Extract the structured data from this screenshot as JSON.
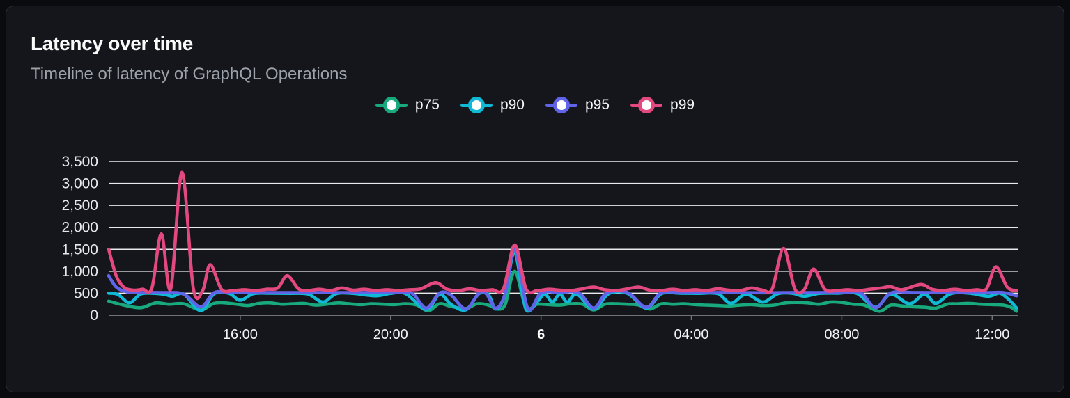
{
  "header": {
    "title": "Latency over time",
    "subtitle": "Timeline of latency of GraphQL Operations"
  },
  "colors": {
    "page_bg": "#0a0b0e",
    "card_bg": "#14161b",
    "card_border": "#2a2d34",
    "grid": "#e8eaed",
    "axis": "#70737a",
    "x_label": "#f2f3f5",
    "x_label_bold": "#ffffff",
    "y_label": "#e7e8ea",
    "title": "#fafafa",
    "subtitle": "#9da2aa",
    "legend_label": "#f4f4f5",
    "marker_fill": "#ffffff"
  },
  "chart_data": {
    "type": "line",
    "title": "Latency over time",
    "subtitle": "Timeline of latency of GraphQL Operations",
    "xlabel": "",
    "ylabel": "",
    "grid": "horizontal",
    "legend_position": "top-center",
    "ylim": [
      0,
      3500
    ],
    "y_ticks": [
      0,
      500,
      1000,
      1500,
      2000,
      2500,
      3000,
      3500
    ],
    "xlim_hours": [
      12.5,
      36.68
    ],
    "x_ticks": [
      {
        "hour": 16,
        "label": "16:00",
        "bold": false
      },
      {
        "hour": 20,
        "label": "20:00",
        "bold": false
      },
      {
        "hour": 24,
        "label": "6",
        "bold": true
      },
      {
        "hour": 28,
        "label": "04:00",
        "bold": false
      },
      {
        "hour": 32,
        "label": "08:00",
        "bold": false
      },
      {
        "hour": 36,
        "label": "12:00",
        "bold": false
      }
    ],
    "series": [
      {
        "name": "p75",
        "color": "#18a97d",
        "points": [
          [
            12.5,
            320
          ],
          [
            12.9,
            230
          ],
          [
            13.35,
            170
          ],
          [
            13.75,
            280
          ],
          [
            14.1,
            250
          ],
          [
            14.5,
            260
          ],
          [
            14.95,
            120
          ],
          [
            15.3,
            270
          ],
          [
            15.6,
            280
          ],
          [
            15.9,
            250
          ],
          [
            16.2,
            220
          ],
          [
            16.5,
            270
          ],
          [
            16.8,
            280
          ],
          [
            17.1,
            250
          ],
          [
            17.4,
            260
          ],
          [
            17.7,
            270
          ],
          [
            18.0,
            230
          ],
          [
            18.3,
            250
          ],
          [
            18.6,
            280
          ],
          [
            18.9,
            260
          ],
          [
            19.2,
            240
          ],
          [
            19.5,
            260
          ],
          [
            19.8,
            250
          ],
          [
            20.1,
            240
          ],
          [
            20.4,
            260
          ],
          [
            20.7,
            230
          ],
          [
            21.0,
            100
          ],
          [
            21.3,
            260
          ],
          [
            21.6,
            200
          ],
          [
            22.0,
            150
          ],
          [
            22.3,
            260
          ],
          [
            22.6,
            230
          ],
          [
            22.85,
            140
          ],
          [
            23.05,
            250
          ],
          [
            23.3,
            1000
          ],
          [
            23.6,
            180
          ],
          [
            23.9,
            250
          ],
          [
            24.2,
            240
          ],
          [
            24.5,
            230
          ],
          [
            24.8,
            260
          ],
          [
            25.1,
            250
          ],
          [
            25.4,
            120
          ],
          [
            25.7,
            250
          ],
          [
            26.0,
            260
          ],
          [
            26.3,
            250
          ],
          [
            26.6,
            230
          ],
          [
            26.9,
            140
          ],
          [
            27.2,
            260
          ],
          [
            27.5,
            250
          ],
          [
            27.8,
            260
          ],
          [
            28.1,
            240
          ],
          [
            28.4,
            230
          ],
          [
            28.7,
            220
          ],
          [
            29.0,
            210
          ],
          [
            29.3,
            230
          ],
          [
            29.6,
            240
          ],
          [
            29.9,
            220
          ],
          [
            30.2,
            230
          ],
          [
            30.5,
            280
          ],
          [
            30.8,
            290
          ],
          [
            31.1,
            280
          ],
          [
            31.4,
            250
          ],
          [
            31.7,
            300
          ],
          [
            32.0,
            290
          ],
          [
            32.3,
            250
          ],
          [
            32.6,
            230
          ],
          [
            33.0,
            90
          ],
          [
            33.3,
            230
          ],
          [
            33.6,
            210
          ],
          [
            33.9,
            190
          ],
          [
            34.2,
            180
          ],
          [
            34.5,
            160
          ],
          [
            34.8,
            250
          ],
          [
            35.1,
            260
          ],
          [
            35.4,
            270
          ],
          [
            35.7,
            250
          ],
          [
            36.0,
            240
          ],
          [
            36.3,
            230
          ],
          [
            36.5,
            180
          ],
          [
            36.65,
            90
          ]
        ]
      },
      {
        "name": "p90",
        "color": "#10b9d5",
        "points": [
          [
            12.5,
            500
          ],
          [
            12.75,
            470
          ],
          [
            13.05,
            280
          ],
          [
            13.35,
            480
          ],
          [
            13.7,
            495
          ],
          [
            14.0,
            470
          ],
          [
            14.2,
            430
          ],
          [
            14.5,
            480
          ],
          [
            14.95,
            100
          ],
          [
            15.3,
            485
          ],
          [
            15.7,
            495
          ],
          [
            16.0,
            340
          ],
          [
            16.35,
            490
          ],
          [
            16.8,
            500
          ],
          [
            17.3,
            495
          ],
          [
            17.8,
            480
          ],
          [
            18.2,
            300
          ],
          [
            18.55,
            490
          ],
          [
            19.0,
            495
          ],
          [
            19.6,
            440
          ],
          [
            20.0,
            495
          ],
          [
            20.4,
            490
          ],
          [
            20.95,
            130
          ],
          [
            21.3,
            480
          ],
          [
            21.6,
            250
          ],
          [
            22.0,
            120
          ],
          [
            22.35,
            490
          ],
          [
            22.6,
            470
          ],
          [
            22.8,
            140
          ],
          [
            23.05,
            480
          ],
          [
            23.3,
            1430
          ],
          [
            23.6,
            130
          ],
          [
            23.9,
            310
          ],
          [
            24.1,
            480
          ],
          [
            24.3,
            300
          ],
          [
            24.5,
            480
          ],
          [
            24.7,
            300
          ],
          [
            24.95,
            480
          ],
          [
            25.4,
            140
          ],
          [
            25.8,
            490
          ],
          [
            26.3,
            495
          ],
          [
            26.8,
            160
          ],
          [
            27.2,
            490
          ],
          [
            27.7,
            500
          ],
          [
            28.2,
            495
          ],
          [
            28.7,
            490
          ],
          [
            29.05,
            270
          ],
          [
            29.45,
            480
          ],
          [
            29.9,
            300
          ],
          [
            30.3,
            490
          ],
          [
            30.7,
            495
          ],
          [
            31.0,
            430
          ],
          [
            31.4,
            495
          ],
          [
            31.9,
            500
          ],
          [
            32.4,
            495
          ],
          [
            32.9,
            180
          ],
          [
            33.3,
            480
          ],
          [
            33.8,
            260
          ],
          [
            34.2,
            480
          ],
          [
            34.5,
            270
          ],
          [
            34.9,
            490
          ],
          [
            35.4,
            500
          ],
          [
            35.9,
            430
          ],
          [
            36.2,
            500
          ],
          [
            36.45,
            350
          ],
          [
            36.65,
            160
          ]
        ]
      },
      {
        "name": "p95",
        "color": "#6064e8",
        "points": [
          [
            12.5,
            900
          ],
          [
            12.7,
            640
          ],
          [
            12.95,
            540
          ],
          [
            13.2,
            515
          ],
          [
            14.0,
            515
          ],
          [
            14.5,
            480
          ],
          [
            14.95,
            190
          ],
          [
            15.3,
            510
          ],
          [
            15.7,
            515
          ],
          [
            16.5,
            515
          ],
          [
            17.5,
            515
          ],
          [
            18.5,
            515
          ],
          [
            19.5,
            515
          ],
          [
            20.3,
            515
          ],
          [
            20.6,
            480
          ],
          [
            20.95,
            160
          ],
          [
            21.3,
            505
          ],
          [
            21.6,
            460
          ],
          [
            22.0,
            140
          ],
          [
            22.35,
            505
          ],
          [
            22.55,
            480
          ],
          [
            22.8,
            160
          ],
          [
            23.05,
            500
          ],
          [
            23.3,
            1500
          ],
          [
            23.65,
            150
          ],
          [
            24.0,
            505
          ],
          [
            24.5,
            515
          ],
          [
            25.0,
            510
          ],
          [
            25.4,
            160
          ],
          [
            25.75,
            505
          ],
          [
            26.3,
            515
          ],
          [
            26.8,
            180
          ],
          [
            27.2,
            510
          ],
          [
            27.8,
            515
          ],
          [
            28.5,
            515
          ],
          [
            29.2,
            515
          ],
          [
            29.9,
            510
          ],
          [
            30.6,
            515
          ],
          [
            31.3,
            515
          ],
          [
            32.0,
            515
          ],
          [
            32.5,
            510
          ],
          [
            32.9,
            170
          ],
          [
            33.3,
            505
          ],
          [
            33.9,
            515
          ],
          [
            34.5,
            515
          ],
          [
            35.2,
            515
          ],
          [
            35.9,
            515
          ],
          [
            36.3,
            515
          ],
          [
            36.65,
            440
          ]
        ]
      },
      {
        "name": "p99",
        "color": "#e3487f",
        "points": [
          [
            12.5,
            1500
          ],
          [
            12.7,
            900
          ],
          [
            12.9,
            640
          ],
          [
            13.15,
            570
          ],
          [
            13.4,
            590
          ],
          [
            13.65,
            620
          ],
          [
            13.9,
            1850
          ],
          [
            14.15,
            600
          ],
          [
            14.45,
            3250
          ],
          [
            14.75,
            620
          ],
          [
            15.0,
            560
          ],
          [
            15.2,
            1150
          ],
          [
            15.5,
            590
          ],
          [
            15.8,
            560
          ],
          [
            16.1,
            580
          ],
          [
            16.4,
            560
          ],
          [
            16.7,
            590
          ],
          [
            17.0,
            620
          ],
          [
            17.25,
            900
          ],
          [
            17.55,
            600
          ],
          [
            17.8,
            560
          ],
          [
            18.1,
            590
          ],
          [
            18.4,
            560
          ],
          [
            18.7,
            620
          ],
          [
            19.0,
            570
          ],
          [
            19.3,
            590
          ],
          [
            19.6,
            560
          ],
          [
            19.9,
            580
          ],
          [
            20.2,
            560
          ],
          [
            20.5,
            580
          ],
          [
            20.8,
            600
          ],
          [
            21.2,
            740
          ],
          [
            21.5,
            590
          ],
          [
            21.8,
            560
          ],
          [
            22.1,
            600
          ],
          [
            22.4,
            560
          ],
          [
            22.7,
            580
          ],
          [
            23.0,
            600
          ],
          [
            23.3,
            1600
          ],
          [
            23.6,
            600
          ],
          [
            23.9,
            560
          ],
          [
            24.2,
            590
          ],
          [
            24.5,
            570
          ],
          [
            24.8,
            560
          ],
          [
            25.1,
            600
          ],
          [
            25.4,
            640
          ],
          [
            25.7,
            580
          ],
          [
            26.0,
            560
          ],
          [
            26.3,
            600
          ],
          [
            26.6,
            640
          ],
          [
            26.9,
            570
          ],
          [
            27.2,
            560
          ],
          [
            27.5,
            590
          ],
          [
            27.8,
            560
          ],
          [
            28.1,
            580
          ],
          [
            28.4,
            560
          ],
          [
            28.7,
            600
          ],
          [
            29.0,
            570
          ],
          [
            29.3,
            560
          ],
          [
            29.6,
            620
          ],
          [
            29.9,
            570
          ],
          [
            30.15,
            600
          ],
          [
            30.45,
            1520
          ],
          [
            30.75,
            600
          ],
          [
            31.0,
            580
          ],
          [
            31.25,
            1050
          ],
          [
            31.55,
            590
          ],
          [
            31.85,
            560
          ],
          [
            32.15,
            580
          ],
          [
            32.45,
            560
          ],
          [
            32.75,
            590
          ],
          [
            33.05,
            620
          ],
          [
            33.3,
            650
          ],
          [
            33.6,
            580
          ],
          [
            34.1,
            700
          ],
          [
            34.4,
            590
          ],
          [
            34.7,
            560
          ],
          [
            35.0,
            590
          ],
          [
            35.3,
            560
          ],
          [
            35.6,
            580
          ],
          [
            35.85,
            600
          ],
          [
            36.1,
            1100
          ],
          [
            36.4,
            640
          ],
          [
            36.65,
            560
          ]
        ]
      }
    ]
  }
}
